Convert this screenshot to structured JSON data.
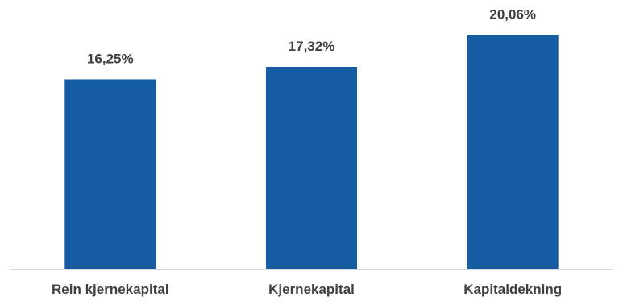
{
  "chart_data": {
    "type": "bar",
    "categories": [
      "Rein kjernekapital",
      "Kjernekapital",
      "Kapitaldekning"
    ],
    "values": [
      16.25,
      17.32,
      20.06
    ],
    "data_labels": [
      "16,25%",
      "17,32%",
      "20,06%"
    ],
    "title": "",
    "xlabel": "",
    "ylabel": "",
    "grid": false,
    "legend": "none",
    "bar_color": "#155ca2",
    "axis_color": "#d9d9d9",
    "text_color": "#404040"
  }
}
